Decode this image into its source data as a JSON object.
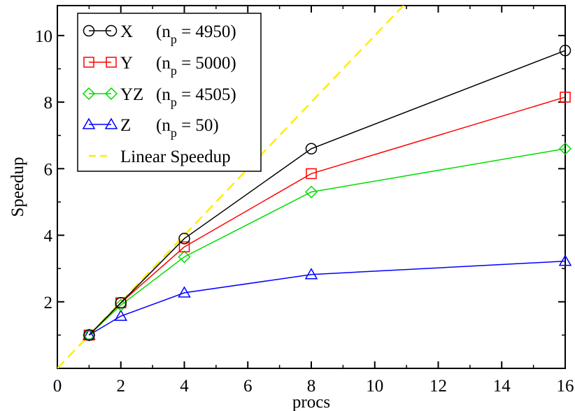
{
  "chart_data": {
    "type": "line",
    "title": "",
    "xlabel": "procs",
    "ylabel": "Speedup",
    "xlim": [
      0,
      16
    ],
    "ylim": [
      0,
      10.9
    ],
    "xticks": [
      0,
      2,
      4,
      6,
      8,
      10,
      12,
      14,
      16
    ],
    "yticks": [
      2,
      4,
      6,
      8,
      10
    ],
    "grid": false,
    "legend_position": "top-left",
    "series": [
      {
        "name": "X",
        "np_label": "4950",
        "color": "#000000",
        "marker": "circle",
        "x": [
          1,
          2,
          4,
          8,
          16
        ],
        "y": [
          1.0,
          1.97,
          3.9,
          6.6,
          9.55
        ]
      },
      {
        "name": "Y",
        "np_label": "5000",
        "color": "#ff0000",
        "marker": "square",
        "x": [
          1,
          2,
          4,
          8,
          16
        ],
        "y": [
          1.0,
          1.97,
          3.65,
          5.85,
          8.15
        ]
      },
      {
        "name": "YZ",
        "np_label": "4505",
        "color": "#00dd00",
        "marker": "diamond",
        "x": [
          1,
          2,
          4,
          8,
          16
        ],
        "y": [
          1.0,
          1.9,
          3.35,
          5.3,
          6.6
        ]
      },
      {
        "name": "Z",
        "np_label": "50",
        "color": "#0000ff",
        "marker": "triangle",
        "x": [
          1,
          2,
          4,
          8,
          16
        ],
        "y": [
          1.0,
          1.57,
          2.27,
          2.82,
          3.22
        ]
      }
    ],
    "reference_line": {
      "name": "Linear Speedup",
      "color": "#ffee00",
      "style": "dashed",
      "slope": 1
    }
  }
}
